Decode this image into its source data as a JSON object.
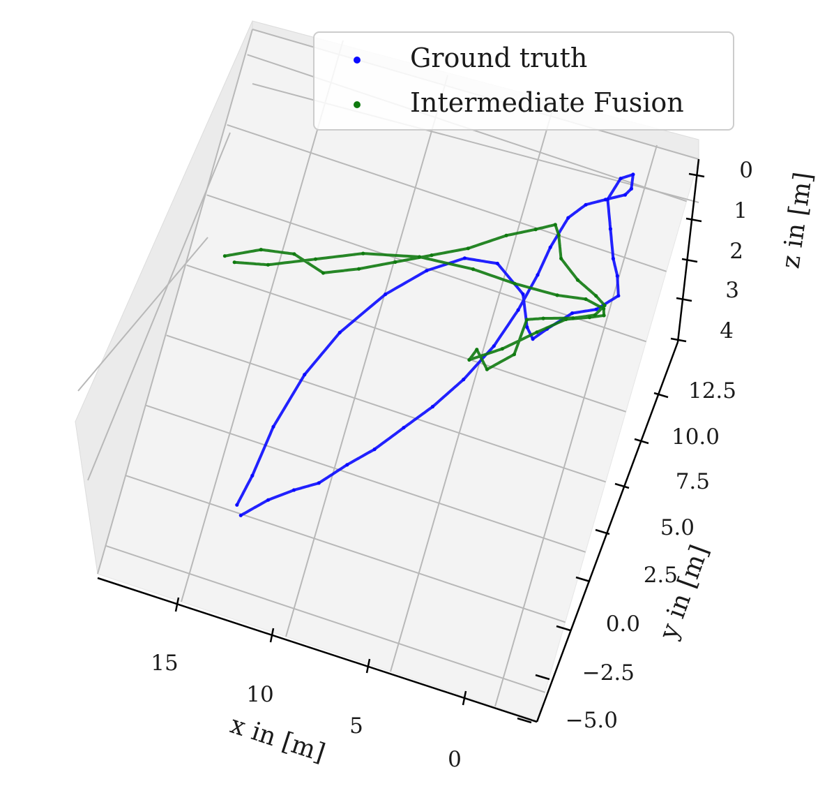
{
  "chart_data": {
    "type": "scatter",
    "projection": "3d",
    "legend_position": "top-right",
    "grid": true,
    "axes": {
      "x": {
        "label": "x in [m]",
        "ticks": [
          "15",
          "10",
          "5",
          "0"
        ]
      },
      "y": {
        "label": "y in [m]",
        "ticks": [
          "12.5",
          "10.0",
          "7.5",
          "5.0",
          "2.5",
          "0.0",
          "−2.5",
          "−5.0"
        ]
      },
      "z": {
        "label": "z in [m]",
        "ticks": [
          "0",
          "1",
          "2",
          "3",
          "4"
        ]
      }
    },
    "series": [
      {
        "name": "Ground truth",
        "color": "#0a0aff",
        "points": [
          [
            13.5,
            -2.6,
            3.9
          ],
          [
            12.5,
            -1.8,
            3.9
          ],
          [
            11.5,
            -1.2,
            3.9
          ],
          [
            10.5,
            -0.7,
            3.9
          ],
          [
            9.5,
            0.2,
            3.9
          ],
          [
            8.5,
            1.0,
            3.9
          ],
          [
            7.5,
            2.0,
            3.8
          ],
          [
            6.5,
            3.0,
            3.8
          ],
          [
            5.5,
            4.2,
            3.7
          ],
          [
            4.6,
            5.6,
            3.6
          ],
          [
            4.0,
            7.0,
            3.4
          ],
          [
            3.6,
            8.3,
            3.1
          ],
          [
            3.4,
            9.3,
            2.9
          ],
          [
            3.0,
            10.4,
            2.6
          ],
          [
            2.4,
            11.0,
            2.5
          ],
          [
            1.6,
            11.4,
            2.6
          ],
          [
            0.8,
            11.8,
            2.8
          ],
          [
            0.6,
            12.1,
            3.0
          ],
          [
            0.7,
            12.6,
            3.1
          ],
          [
            1.2,
            12.3,
            2.9
          ],
          [
            1.5,
            11.5,
            3.0
          ],
          [
            1.0,
            10.6,
            3.2
          ],
          [
            0.5,
            9.7,
            3.4
          ],
          [
            0.1,
            9.2,
            3.5
          ],
          [
            -0.2,
            8.6,
            3.7
          ],
          [
            0.6,
            7.9,
            3.6
          ],
          [
            1.6,
            7.5,
            3.5
          ],
          [
            2.5,
            6.7,
            3.4
          ],
          [
            3.0,
            6.2,
            3.3
          ],
          [
            3.4,
            6.5,
            3.2
          ],
          [
            4.0,
            7.5,
            3.0
          ],
          [
            5.5,
            8.2,
            2.9
          ],
          [
            7.0,
            8.0,
            2.8
          ],
          [
            8.5,
            7.2,
            2.9
          ],
          [
            10.0,
            6.0,
            3.0
          ],
          [
            11.5,
            4.3,
            3.2
          ],
          [
            12.5,
            2.6,
            3.5
          ],
          [
            13.2,
            0.6,
            3.7
          ],
          [
            13.5,
            -1.2,
            3.8
          ],
          [
            13.8,
            -2.3,
            3.9
          ]
        ]
      },
      {
        "name": "Intermediate Fusion",
        "color": "#0f7a0f",
        "points": [
          [
            17.5,
            5.4,
            2.4
          ],
          [
            16.0,
            6.0,
            2.4
          ],
          [
            14.5,
            6.2,
            2.3
          ],
          [
            13.0,
            5.9,
            2.3
          ],
          [
            11.5,
            6.4,
            2.2
          ],
          [
            10.0,
            7.0,
            2.1
          ],
          [
            8.5,
            7.6,
            2.0
          ],
          [
            7.0,
            8.2,
            1.9
          ],
          [
            5.5,
            9.0,
            1.7
          ],
          [
            4.3,
            9.5,
            1.6
          ],
          [
            3.5,
            9.9,
            1.8
          ],
          [
            3.2,
            9.7,
            2.4
          ],
          [
            2.8,
            9.0,
            2.6
          ],
          [
            1.8,
            8.5,
            2.7
          ],
          [
            0.8,
            8.2,
            2.8
          ],
          [
            0.3,
            8.0,
            2.9
          ],
          [
            0.6,
            7.6,
            3.0
          ],
          [
            1.5,
            7.3,
            3.2
          ],
          [
            2.8,
            7.0,
            3.4
          ],
          [
            3.5,
            6.8,
            3.5
          ],
          [
            3.6,
            5.6,
            3.9
          ],
          [
            4.6,
            4.8,
            3.8
          ],
          [
            5.3,
            5.3,
            3.6
          ],
          [
            5.5,
            4.9,
            3.7
          ],
          [
            4.2,
            5.6,
            3.6
          ],
          [
            2.9,
            6.5,
            3.5
          ],
          [
            1.8,
            7.2,
            3.3
          ],
          [
            0.8,
            7.5,
            3.2
          ],
          [
            0.2,
            7.7,
            3.1
          ],
          [
            0.3,
            7.9,
            3.0
          ],
          [
            1.2,
            8.0,
            2.9
          ],
          [
            2.5,
            7.8,
            2.8
          ],
          [
            4.5,
            7.7,
            2.7
          ],
          [
            6.5,
            7.7,
            2.6
          ],
          [
            9.0,
            7.5,
            2.5
          ],
          [
            11.5,
            7.0,
            2.5
          ],
          [
            13.5,
            6.3,
            2.5
          ],
          [
            15.5,
            5.6,
            2.5
          ],
          [
            17.0,
            5.3,
            2.4
          ]
        ]
      }
    ]
  }
}
